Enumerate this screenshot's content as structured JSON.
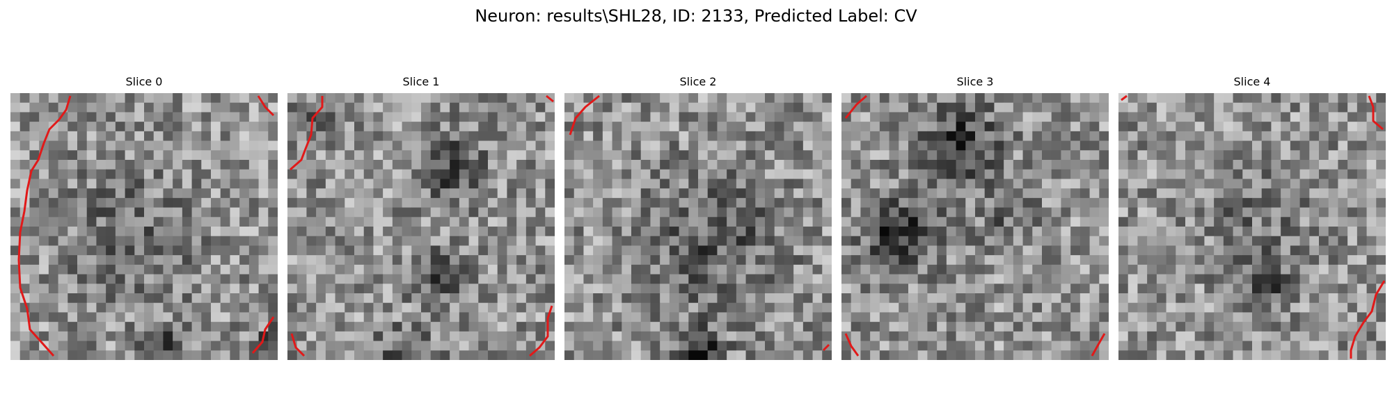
{
  "figure": {
    "title": "Neuron: results\\SHL28, ID: 2133, Predicted Label: CV"
  },
  "colors": {
    "contour": "#e11919",
    "background": "#ffffff"
  },
  "slices": [
    {
      "title": "Slice 0"
    },
    {
      "title": "Slice 1"
    },
    {
      "title": "Slice 2"
    },
    {
      "title": "Slice 3"
    },
    {
      "title": "Slice 4"
    }
  ]
}
